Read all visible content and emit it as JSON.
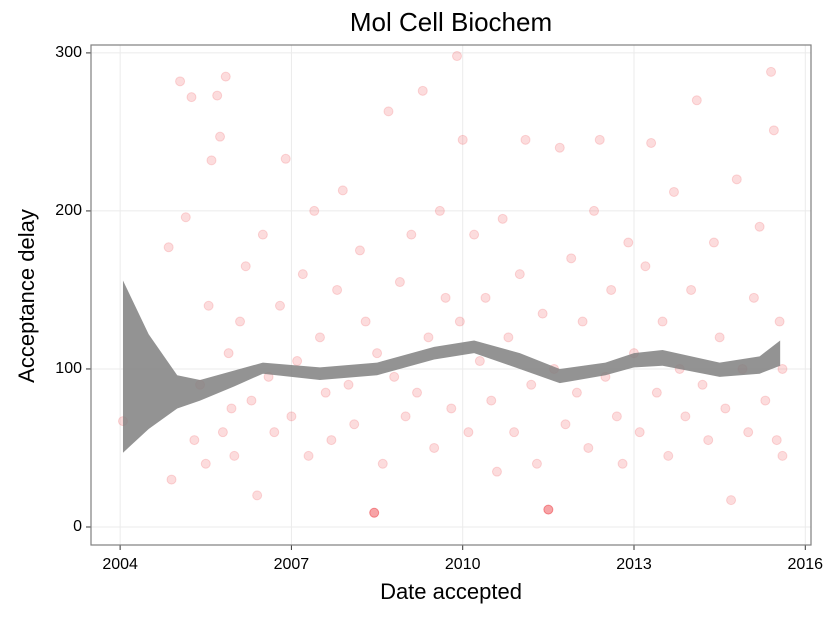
{
  "chart_data": {
    "type": "scatter",
    "title": "Mol Cell Biochem",
    "x_label": "Date accepted",
    "y_label": "Acceptance delay",
    "xlim": [
      2003.49,
      2016.1
    ],
    "ylim": [
      -11.4,
      305
    ],
    "xticks": [
      2004,
      2007,
      2010,
      2013,
      2016
    ],
    "yticks": [
      0,
      100,
      200,
      300
    ],
    "grid": true,
    "point_color": "#e8161b",
    "point_alpha": 0.15,
    "x": [
      2004.05,
      2004.85,
      2004.9,
      2005.05,
      2005.15,
      2005.25,
      2005.3,
      2005.4,
      2005.5,
      2005.55,
      2005.6,
      2005.7,
      2005.75,
      2005.8,
      2005.85,
      2005.9,
      2005.95,
      2006.0,
      2006.1,
      2006.2,
      2006.3,
      2006.4,
      2006.5,
      2006.6,
      2006.7,
      2006.8,
      2006.9,
      2007.0,
      2007.1,
      2007.2,
      2007.3,
      2007.4,
      2007.5,
      2007.6,
      2007.7,
      2007.8,
      2007.9,
      2008.0,
      2008.1,
      2008.2,
      2008.3,
      2008.45,
      2008.45,
      2008.45,
      2008.5,
      2008.6,
      2008.7,
      2008.8,
      2008.9,
      2009.0,
      2009.1,
      2009.2,
      2009.3,
      2009.4,
      2009.5,
      2009.6,
      2009.7,
      2009.8,
      2009.9,
      2009.95,
      2010.0,
      2010.1,
      2010.2,
      2010.3,
      2010.4,
      2010.5,
      2010.6,
      2010.7,
      2010.8,
      2010.9,
      2011.0,
      2011.1,
      2011.2,
      2011.3,
      2011.4,
      2011.5,
      2011.5,
      2011.5,
      2011.6,
      2011.7,
      2011.8,
      2011.9,
      2012.0,
      2012.1,
      2012.2,
      2012.3,
      2012.4,
      2012.5,
      2012.6,
      2012.7,
      2012.8,
      2012.9,
      2013.0,
      2013.1,
      2013.2,
      2013.3,
      2013.4,
      2013.5,
      2013.6,
      2013.7,
      2013.8,
      2013.9,
      2014.0,
      2014.1,
      2014.2,
      2014.3,
      2014.4,
      2014.5,
      2014.6,
      2014.7,
      2014.8,
      2014.9,
      2015.0,
      2015.1,
      2015.2,
      2015.3,
      2015.4,
      2015.45,
      2015.5,
      2015.55,
      2015.6,
      2015.6
    ],
    "values": [
      67,
      177,
      30,
      282,
      196,
      272,
      55,
      90,
      40,
      140,
      232,
      273,
      247,
      60,
      285,
      110,
      75,
      45,
      130,
      165,
      80,
      20,
      185,
      95,
      60,
      140,
      233,
      70,
      105,
      160,
      45,
      200,
      120,
      85,
      55,
      150,
      213,
      90,
      65,
      175,
      130,
      9,
      9,
      9,
      110,
      40,
      263,
      95,
      155,
      70,
      185,
      85,
      276,
      120,
      50,
      200,
      145,
      75,
      298,
      130,
      245,
      60,
      185,
      105,
      145,
      80,
      35,
      195,
      120,
      60,
      160,
      245,
      90,
      40,
      135,
      11,
      11,
      11,
      100,
      240,
      65,
      170,
      85,
      130,
      50,
      200,
      245,
      95,
      150,
      70,
      40,
      180,
      110,
      60,
      165,
      243,
      85,
      130,
      45,
      212,
      100,
      70,
      150,
      270,
      90,
      55,
      180,
      120,
      75,
      17,
      220,
      100,
      60,
      145,
      190,
      80,
      288,
      251,
      55,
      130,
      100,
      45
    ],
    "band": {
      "color": "#808080",
      "x": [
        2004.05,
        2004.5,
        2005.0,
        2005.4,
        2006.0,
        2006.5,
        2007.5,
        2008.5,
        2009.5,
        2010.2,
        2011.0,
        2011.7,
        2012.5,
        2013.0,
        2013.5,
        2014.5,
        2015.2,
        2015.56
      ],
      "lower": [
        47,
        62,
        75,
        80,
        89,
        97,
        93,
        96,
        106,
        110,
        100,
        91,
        96,
        101,
        102,
        95,
        97,
        102
      ],
      "upper": [
        156,
        122,
        96,
        93,
        99,
        104,
        101,
        104,
        114,
        118,
        110,
        100,
        104,
        110,
        112,
        104,
        108,
        118
      ]
    }
  }
}
